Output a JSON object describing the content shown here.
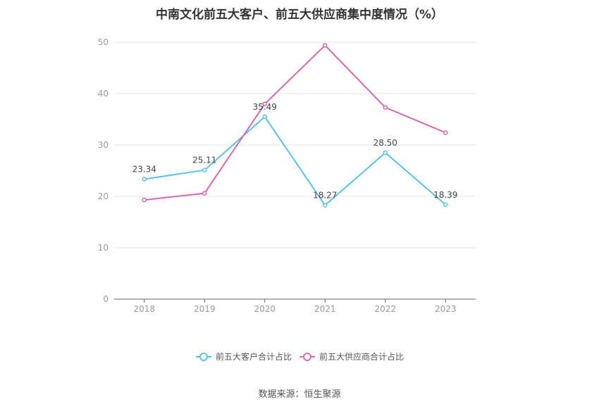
{
  "page": {
    "title": "中南文化前五大客户、前五大供应商集中度情况（%）",
    "source": "数据来源：恒生聚源"
  },
  "chart_data": {
    "type": "line",
    "title": "中南文化前五大客户、前五大供应商集中度情况（%）",
    "categories": [
      "2018",
      "2019",
      "2020",
      "2021",
      "2022",
      "2023"
    ],
    "series": [
      {
        "name": "前五大客户合计占比",
        "values": [
          23.34,
          25.11,
          35.49,
          18.27,
          28.5,
          18.39
        ],
        "labels": [
          "23.34",
          "25.11",
          "35.49",
          "18.27",
          "28.50",
          "18.39"
        ],
        "color": "#5bc0eb"
      },
      {
        "name": "前五大供应商合计占比",
        "values": [
          19.3,
          20.6,
          38.0,
          49.4,
          37.3,
          32.4
        ],
        "color": "#d46aae"
      }
    ],
    "yticks": [
      "0",
      "10",
      "20",
      "30",
      "40",
      "50"
    ],
    "ylim": [
      0,
      50
    ],
    "grid": true,
    "legend": "bottom-center"
  }
}
